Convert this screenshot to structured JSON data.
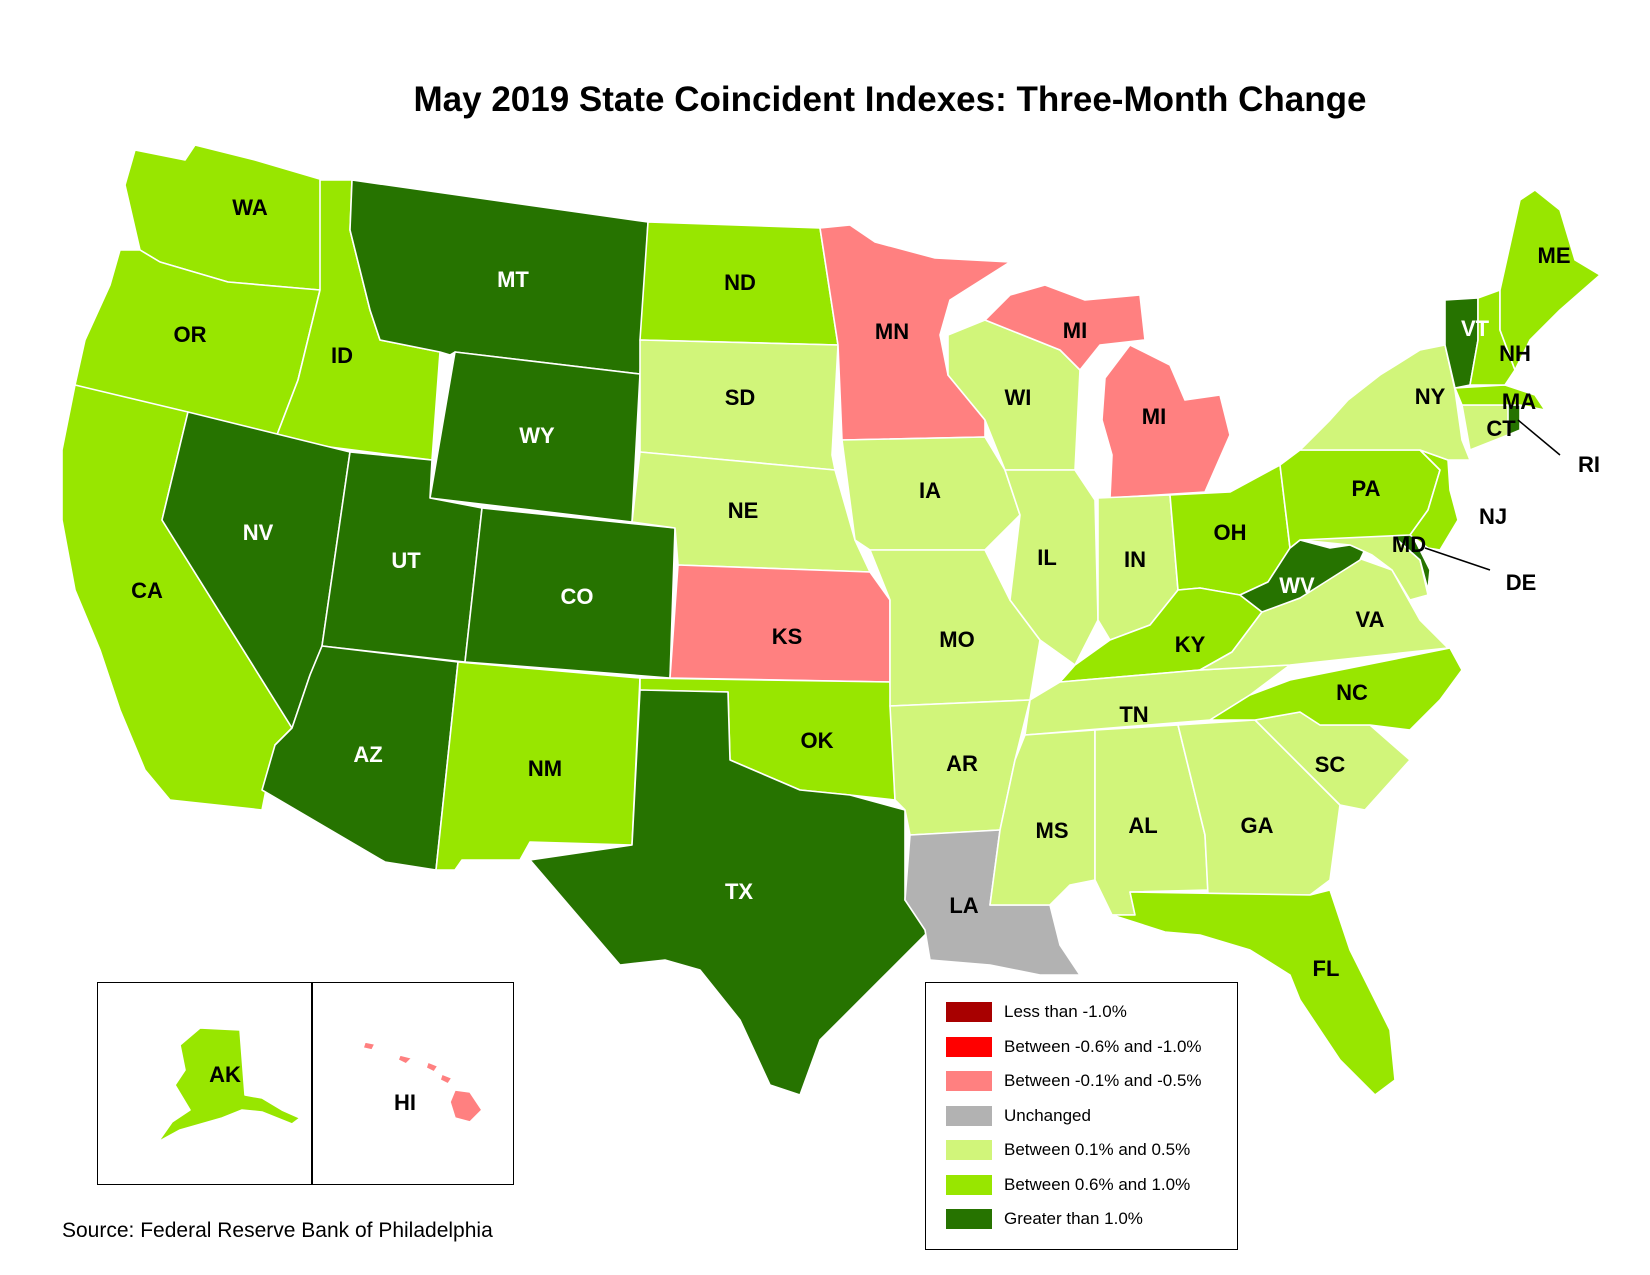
{
  "title": "May 2019 State Coincident Indexes: Three-Month Change",
  "source": "Source: Federal Reserve Bank of Philadelphia",
  "colors": {
    "lt_neg1": "#a80000",
    "neg06_10": "#ff0000",
    "neg01_05": "#ff8080",
    "unchanged": "#b2b2b2",
    "pos01_05": "#d1f57a",
    "pos06_10": "#98e600",
    "gt1": "#267300"
  },
  "legend": [
    {
      "key": "lt_neg1",
      "label": "Less than -1.0%"
    },
    {
      "key": "neg06_10",
      "label": "Between -0.6% and -1.0%"
    },
    {
      "key": "neg01_05",
      "label": "Between -0.1% and -0.5%"
    },
    {
      "key": "unchanged",
      "label": "Unchanged"
    },
    {
      "key": "pos01_05",
      "label": "Between 0.1% and 0.5%"
    },
    {
      "key": "pos06_10",
      "label": "Between 0.6% and 1.0%"
    },
    {
      "key": "gt1",
      "label": "Greater than 1.0%"
    }
  ],
  "states": [
    {
      "abbr": "WA",
      "category": "pos06_10"
    },
    {
      "abbr": "OR",
      "category": "pos06_10"
    },
    {
      "abbr": "CA",
      "category": "pos06_10"
    },
    {
      "abbr": "ID",
      "category": "pos06_10"
    },
    {
      "abbr": "NV",
      "category": "gt1"
    },
    {
      "abbr": "MT",
      "category": "gt1"
    },
    {
      "abbr": "WY",
      "category": "gt1"
    },
    {
      "abbr": "UT",
      "category": "gt1"
    },
    {
      "abbr": "CO",
      "category": "gt1"
    },
    {
      "abbr": "AZ",
      "category": "gt1"
    },
    {
      "abbr": "NM",
      "category": "pos06_10"
    },
    {
      "abbr": "ND",
      "category": "pos06_10"
    },
    {
      "abbr": "SD",
      "category": "pos01_05"
    },
    {
      "abbr": "NE",
      "category": "pos01_05"
    },
    {
      "abbr": "KS",
      "category": "neg01_05"
    },
    {
      "abbr": "OK",
      "category": "pos06_10"
    },
    {
      "abbr": "TX",
      "category": "gt1"
    },
    {
      "abbr": "MN",
      "category": "neg01_05"
    },
    {
      "abbr": "IA",
      "category": "pos01_05"
    },
    {
      "abbr": "MO",
      "category": "pos01_05"
    },
    {
      "abbr": "AR",
      "category": "pos01_05"
    },
    {
      "abbr": "LA",
      "category": "unchanged"
    },
    {
      "abbr": "WI",
      "category": "pos01_05"
    },
    {
      "abbr": "IL",
      "category": "pos01_05"
    },
    {
      "abbr": "MI",
      "category": "neg01_05"
    },
    {
      "abbr": "IN",
      "category": "pos01_05"
    },
    {
      "abbr": "OH",
      "category": "pos06_10"
    },
    {
      "abbr": "KY",
      "category": "pos06_10"
    },
    {
      "abbr": "TN",
      "category": "pos01_05"
    },
    {
      "abbr": "MS",
      "category": "pos01_05"
    },
    {
      "abbr": "AL",
      "category": "pos01_05"
    },
    {
      "abbr": "GA",
      "category": "pos01_05"
    },
    {
      "abbr": "FL",
      "category": "pos06_10"
    },
    {
      "abbr": "SC",
      "category": "pos01_05"
    },
    {
      "abbr": "NC",
      "category": "pos06_10"
    },
    {
      "abbr": "VA",
      "category": "pos01_05"
    },
    {
      "abbr": "WV",
      "category": "gt1"
    },
    {
      "abbr": "MD",
      "category": "pos01_05"
    },
    {
      "abbr": "DE",
      "category": "gt1"
    },
    {
      "abbr": "PA",
      "category": "pos06_10"
    },
    {
      "abbr": "NJ",
      "category": "pos06_10"
    },
    {
      "abbr": "NY",
      "category": "pos01_05"
    },
    {
      "abbr": "CT",
      "category": "pos01_05"
    },
    {
      "abbr": "RI",
      "category": "gt1"
    },
    {
      "abbr": "MA",
      "category": "pos06_10"
    },
    {
      "abbr": "VT",
      "category": "gt1"
    },
    {
      "abbr": "NH",
      "category": "pos06_10"
    },
    {
      "abbr": "ME",
      "category": "pos06_10"
    },
    {
      "abbr": "AK",
      "category": "pos06_10"
    },
    {
      "abbr": "HI",
      "category": "neg01_05"
    }
  ]
}
